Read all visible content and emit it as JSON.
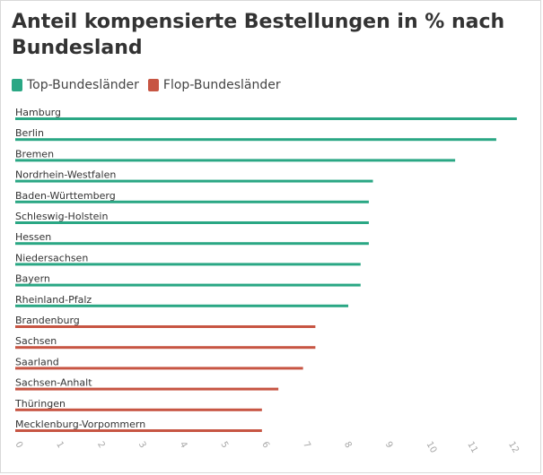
{
  "title": "Anteil kompensierte Bestellungen in % nach Bundesland",
  "legend": [
    {
      "label": "Top-Bundesländer",
      "color": "#2aa784"
    },
    {
      "label": "Flop-Bundesländer",
      "color": "#c75543"
    }
  ],
  "chart_data": {
    "type": "bar",
    "orientation": "horizontal",
    "title": "Anteil kompensierte Bestellungen in % nach Bundesland",
    "xlim": [
      0,
      12.4
    ],
    "x_ticks": [
      0,
      1,
      2,
      3,
      4,
      5,
      6,
      7,
      8,
      9,
      10,
      11,
      12
    ],
    "legend_position": "top-left",
    "grid": false,
    "bars": [
      {
        "label": "Hamburg",
        "value": 12.2,
        "group": "Top-Bundesländer"
      },
      {
        "label": "Berlin",
        "value": 11.7,
        "group": "Top-Bundesländer"
      },
      {
        "label": "Bremen",
        "value": 10.7,
        "group": "Top-Bundesländer"
      },
      {
        "label": "Nordrhein-Westfalen",
        "value": 8.7,
        "group": "Top-Bundesländer"
      },
      {
        "label": "Baden-Württemberg",
        "value": 8.6,
        "group": "Top-Bundesländer"
      },
      {
        "label": "Schleswig-Holstein",
        "value": 8.6,
        "group": "Top-Bundesländer"
      },
      {
        "label": "Hessen",
        "value": 8.6,
        "group": "Top-Bundesländer"
      },
      {
        "label": "Niedersachsen",
        "value": 8.4,
        "group": "Top-Bundesländer"
      },
      {
        "label": "Bayern",
        "value": 8.4,
        "group": "Top-Bundesländer"
      },
      {
        "label": "Rheinland-Pfalz",
        "value": 8.1,
        "group": "Top-Bundesländer"
      },
      {
        "label": "Brandenburg",
        "value": 7.3,
        "group": "Flop-Bundesländer"
      },
      {
        "label": "Sachsen",
        "value": 7.3,
        "group": "Flop-Bundesländer"
      },
      {
        "label": "Saarland",
        "value": 7.0,
        "group": "Flop-Bundesländer"
      },
      {
        "label": "Sachsen-Anhalt",
        "value": 6.4,
        "group": "Flop-Bundesländer"
      },
      {
        "label": "Thüringen",
        "value": 6.0,
        "group": "Flop-Bundesländer"
      },
      {
        "label": "Mecklenburg-Vorpommern",
        "value": 6.0,
        "group": "Flop-Bundesländer"
      }
    ]
  }
}
